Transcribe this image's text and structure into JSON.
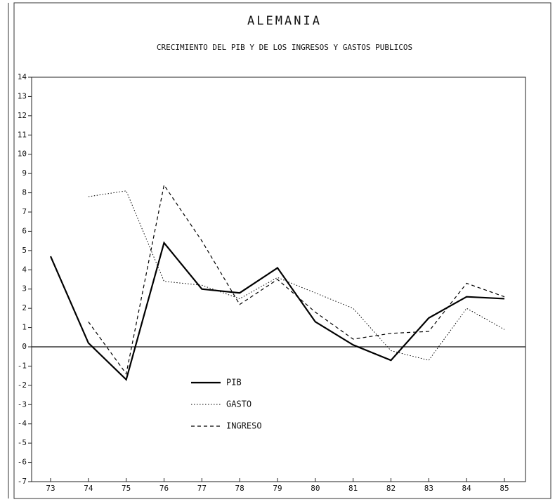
{
  "chart_data": {
    "type": "line",
    "title": "ALEMANIA",
    "subtitle": "CRECIMIENTO DEL PIB Y DE LOS INGRESOS Y GASTOS PUBLICOS",
    "categories": [
      "73",
      "74",
      "75",
      "76",
      "77",
      "78",
      "79",
      "80",
      "81",
      "82",
      "83",
      "84",
      "85"
    ],
    "series": [
      {
        "name": "PIB",
        "color": "#000000",
        "dash": "solid",
        "values": [
          4.7,
          0.2,
          -1.7,
          5.4,
          3.0,
          2.8,
          4.1,
          1.3,
          0.1,
          -0.7,
          1.5,
          2.6,
          2.5
        ]
      },
      {
        "name": "GASTO",
        "color": "#000000",
        "dash": "dotted",
        "values": [
          null,
          7.8,
          8.1,
          3.4,
          3.2,
          2.5,
          3.6,
          2.8,
          2.0,
          -0.2,
          -0.7,
          2.0,
          0.9
        ]
      },
      {
        "name": "INGRESO",
        "color": "#000000",
        "dash": "dashed",
        "values": [
          null,
          1.3,
          -1.4,
          8.4,
          5.5,
          2.2,
          3.5,
          1.8,
          0.4,
          0.7,
          0.8,
          3.3,
          2.6
        ]
      }
    ],
    "ylim": [
      -7,
      14
    ],
    "yticks": [
      -7,
      -6,
      -5,
      -4,
      -3,
      -2,
      -1,
      0,
      1,
      2,
      3,
      4,
      5,
      6,
      7,
      8,
      9,
      10,
      11,
      12,
      13,
      14
    ],
    "zero_line": true,
    "grid": false,
    "legend": "lower left"
  }
}
